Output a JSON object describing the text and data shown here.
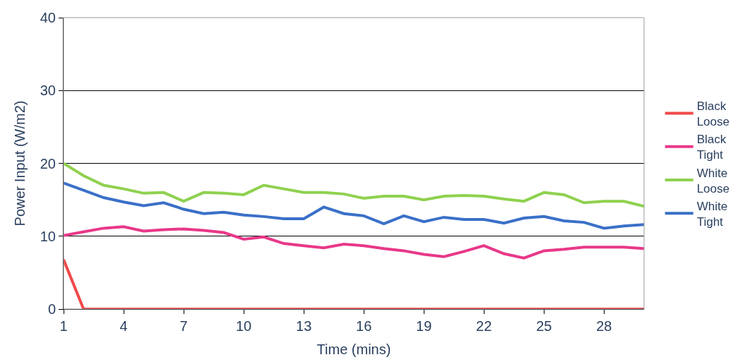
{
  "chart_data": {
    "type": "line",
    "xlabel": "Time (mins)",
    "ylabel": "Power Input (W/m2)",
    "x": [
      1,
      2,
      3,
      4,
      5,
      6,
      7,
      8,
      9,
      10,
      11,
      12,
      13,
      14,
      15,
      16,
      17,
      18,
      19,
      20,
      21,
      22,
      23,
      24,
      25,
      26,
      27,
      28,
      29,
      30
    ],
    "xlim": [
      1,
      30
    ],
    "xticks": [
      1,
      4,
      7,
      10,
      13,
      16,
      19,
      22,
      25,
      28
    ],
    "ylim": [
      0,
      40
    ],
    "yticks": [
      0,
      10,
      20,
      30,
      40
    ],
    "grid": "y",
    "legend": "right",
    "marker": "none",
    "line_style": "solid",
    "series": [
      {
        "name": "Black Loose",
        "color": "#f04a4a",
        "values": [
          6.8,
          0,
          0,
          0,
          0,
          0,
          0,
          0,
          0,
          0,
          0,
          0,
          0,
          0,
          0,
          0,
          0,
          0,
          0,
          0,
          0,
          0,
          0,
          0,
          0,
          0,
          0,
          0,
          0,
          0
        ]
      },
      {
        "name": "Black Tight",
        "color": "#e8388a",
        "values": [
          10.1,
          10.6,
          11.1,
          11.3,
          10.7,
          10.9,
          11,
          10.8,
          10.5,
          9.6,
          9.9,
          9,
          8.7,
          8.4,
          8.9,
          8.7,
          8.3,
          8,
          7.5,
          7.2,
          7.9,
          8.7,
          7.6,
          7,
          8,
          8.2,
          8.5,
          8.5,
          8.5,
          8.3
        ]
      },
      {
        "name": "White Loose",
        "color": "#8fd14f",
        "values": [
          20,
          18.3,
          17,
          16.5,
          15.9,
          16,
          14.8,
          16,
          15.9,
          15.7,
          17,
          16.5,
          16,
          16,
          15.8,
          15.2,
          15.5,
          15.5,
          15,
          15.5,
          15.6,
          15.5,
          15.1,
          14.8,
          16,
          15.7,
          14.6,
          14.8,
          14.8,
          14.1
        ]
      },
      {
        "name": "White Tight",
        "color": "#3a70c8",
        "values": [
          17.3,
          16.3,
          15.3,
          14.7,
          14.2,
          14.6,
          13.7,
          13.1,
          13.3,
          12.9,
          12.7,
          12.4,
          12.4,
          14,
          13.1,
          12.8,
          11.7,
          12.8,
          12,
          12.6,
          12.3,
          12.3,
          11.8,
          12.5,
          12.7,
          12.1,
          11.9,
          11.1,
          11.4,
          11.6
        ]
      }
    ]
  }
}
